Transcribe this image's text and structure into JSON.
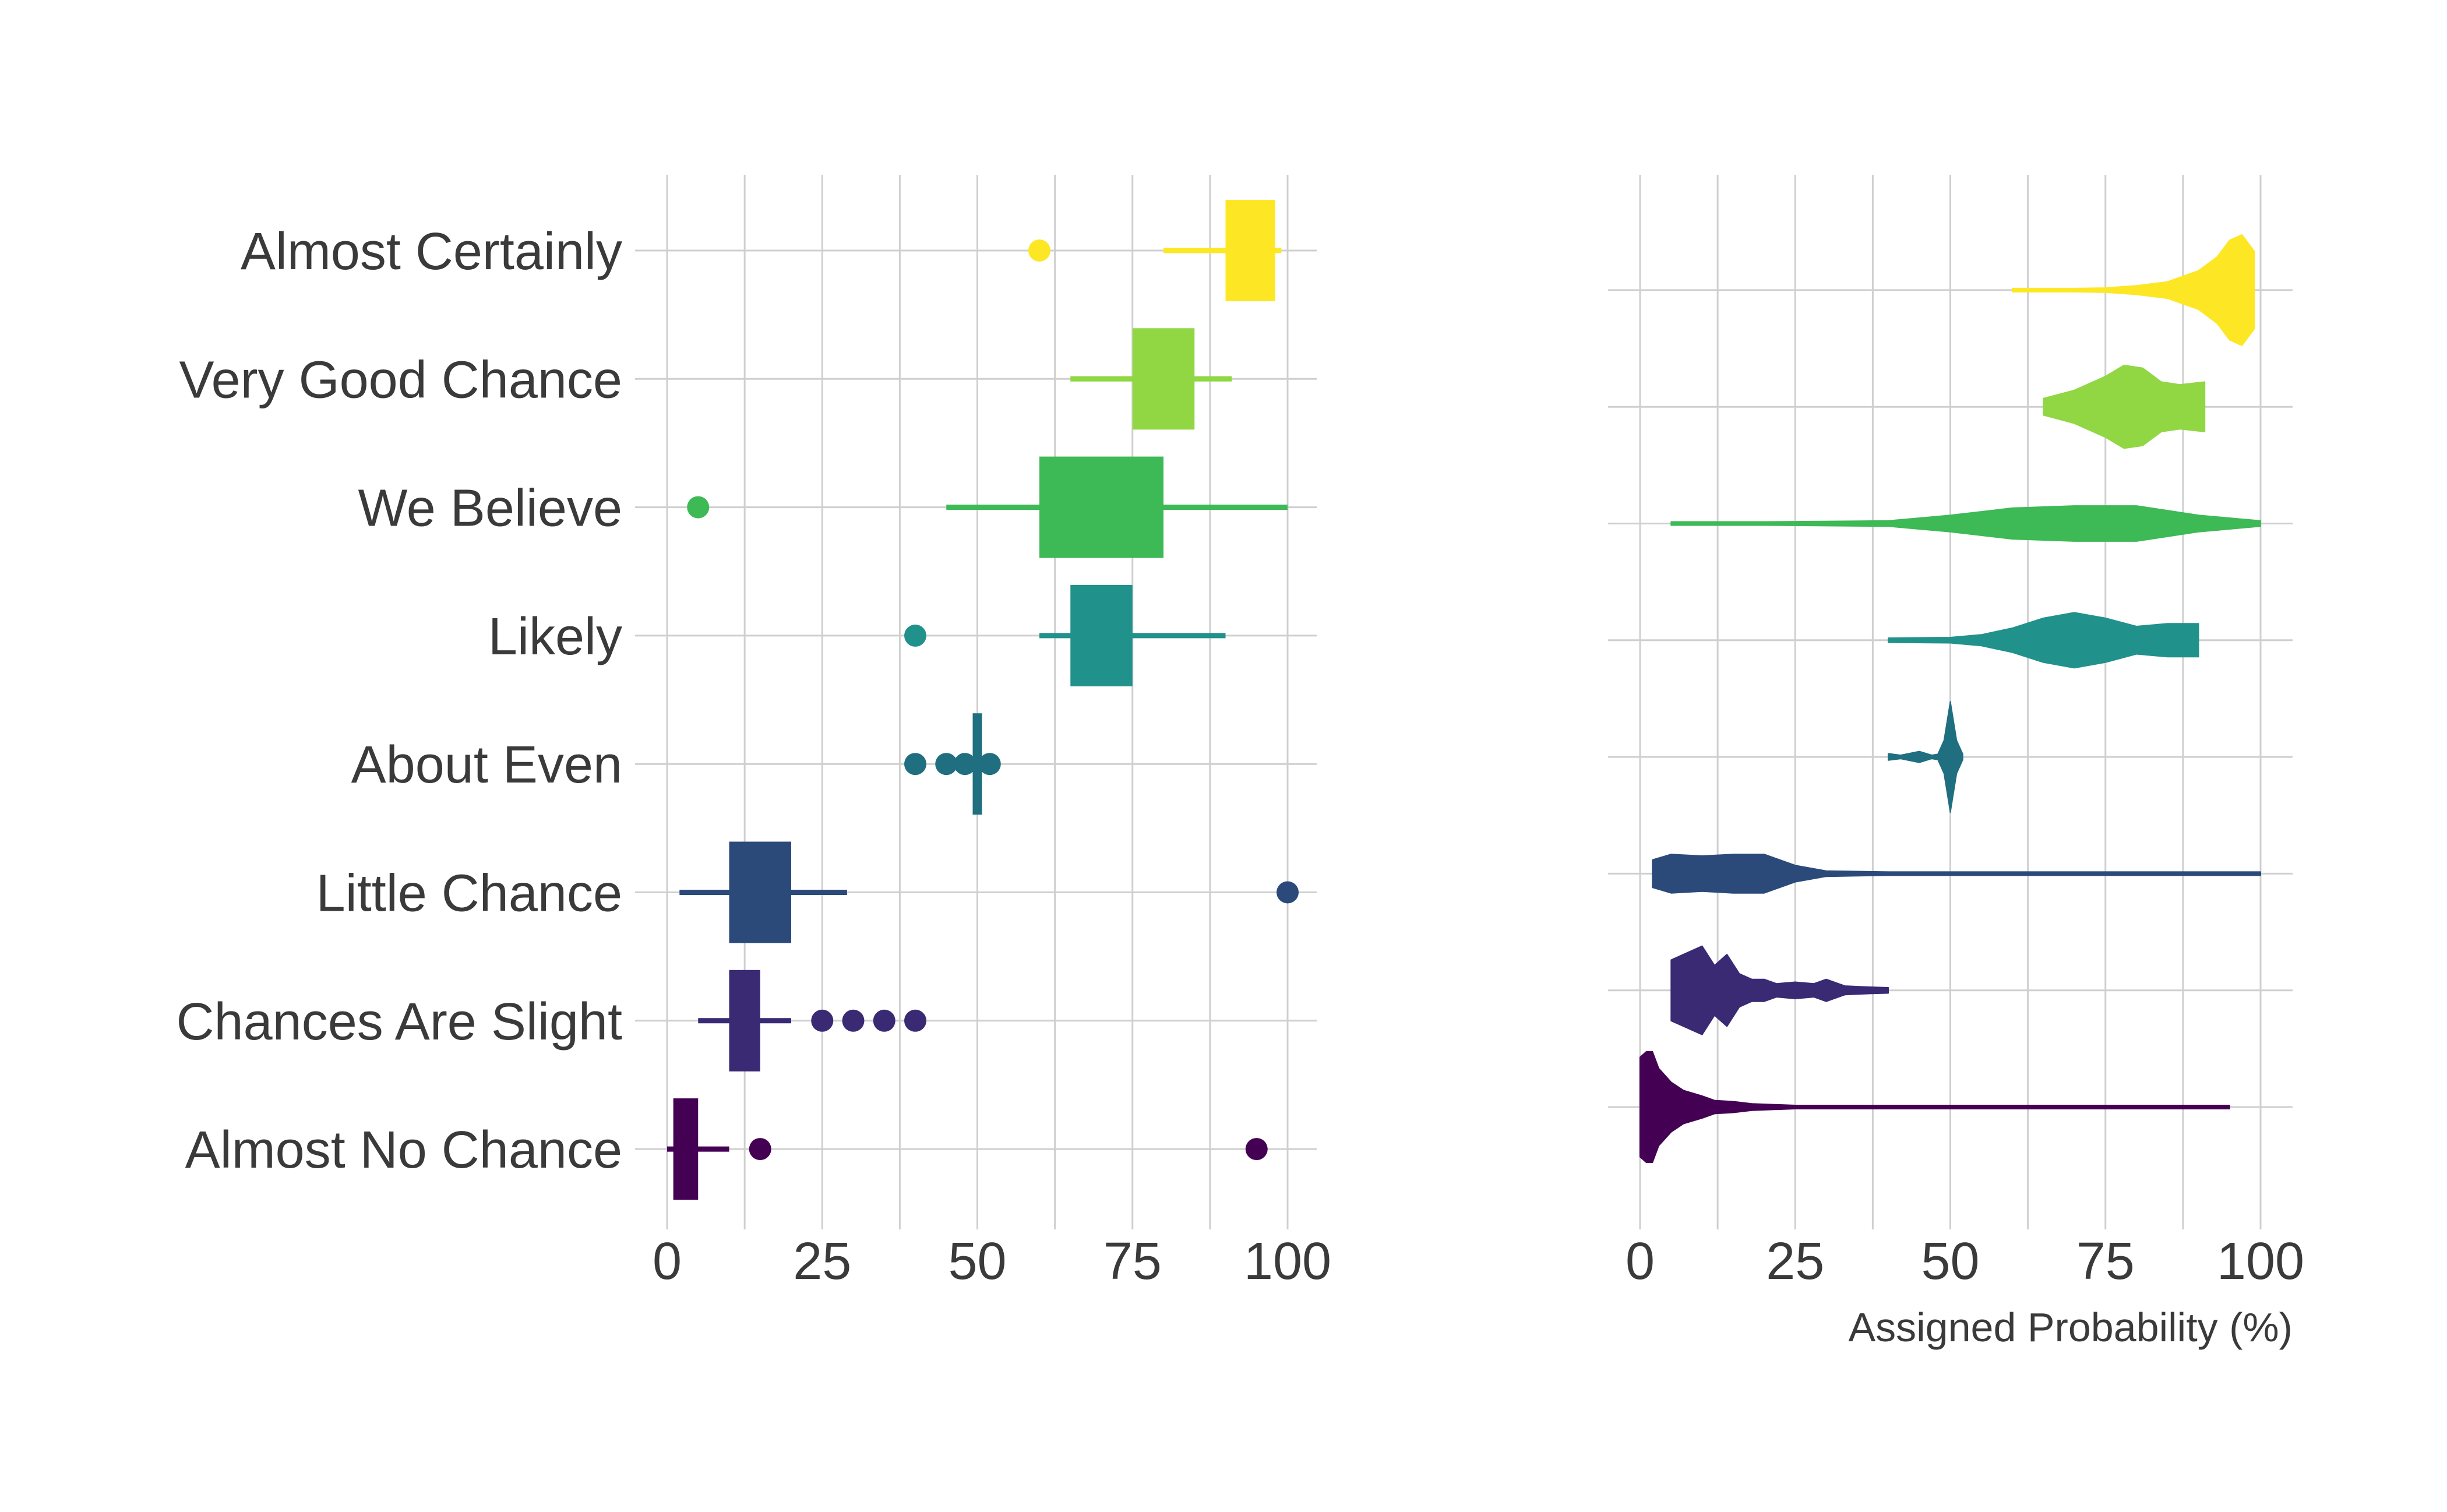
{
  "chart_data": [
    {
      "type": "box",
      "title": "",
      "xlabel": "",
      "ylabel": "",
      "xlim": [
        0,
        100
      ],
      "x_ticks": [
        0,
        25,
        50,
        75,
        100
      ],
      "grid": true,
      "legend": "none",
      "categories": [
        "Almost Certainly",
        "Very Good Chance",
        "We Believe",
        "Likely",
        "About Even",
        "Little Chance",
        "Chances Are Slight",
        "Almost No Chance"
      ],
      "series": [
        {
          "category": "Almost Certainly",
          "color": "#FDE725",
          "whisker_low": 80,
          "q1": 90,
          "median": 95,
          "q3": 98,
          "whisker_high": 99,
          "outliers": [
            60
          ]
        },
        {
          "category": "Very Good Chance",
          "color": "#90D743",
          "whisker_low": 65,
          "q1": 75,
          "median": 80,
          "q3": 85,
          "whisker_high": 91,
          "outliers": []
        },
        {
          "category": "We Believe",
          "color": "#3DB955",
          "whisker_low": 45,
          "q1": 60,
          "median": 75,
          "q3": 80,
          "whisker_high": 100,
          "outliers": [
            5
          ]
        },
        {
          "category": "Likely",
          "color": "#21918C",
          "whisker_low": 60,
          "q1": 65,
          "median": 70,
          "q3": 75,
          "whisker_high": 90,
          "outliers": [
            40
          ]
        },
        {
          "category": "About Even",
          "color": "#1F6F80",
          "whisker_low": 50,
          "q1": 50,
          "median": 50,
          "q3": 50,
          "whisker_high": 50,
          "outliers": [
            40,
            45,
            48,
            52
          ]
        },
        {
          "category": "Little Chance",
          "color": "#2B4A7A",
          "whisker_low": 2,
          "q1": 10,
          "median": 15,
          "q3": 20,
          "whisker_high": 29,
          "outliers": [
            100
          ]
        },
        {
          "category": "Chances Are Slight",
          "color": "#3A2A74",
          "whisker_low": 5,
          "q1": 10,
          "median": 12,
          "q3": 15,
          "whisker_high": 20,
          "outliers": [
            25,
            30,
            35,
            40
          ]
        },
        {
          "category": "Almost No Chance",
          "color": "#440154",
          "whisker_low": 0,
          "q1": 1,
          "median": 2,
          "q3": 5,
          "whisker_high": 10,
          "outliers": [
            15,
            95
          ]
        }
      ]
    },
    {
      "type": "violin",
      "title": "",
      "xlabel": "Assigned Probability (%)",
      "ylabel": "",
      "xlim": [
        0,
        100
      ],
      "x_ticks": [
        0,
        25,
        50,
        75,
        100
      ],
      "grid": true,
      "legend": "none",
      "series": [
        {
          "category": "Almost Certainly",
          "color": "#FDE725",
          "density": [
            [
              60,
              0.01
            ],
            [
              70,
              0.02
            ],
            [
              75,
              0.04
            ],
            [
              80,
              0.08
            ],
            [
              85,
              0.15
            ],
            [
              90,
              0.35
            ],
            [
              93,
              0.6
            ],
            [
              95,
              0.9
            ],
            [
              97,
              1.0
            ],
            [
              99,
              0.7
            ]
          ]
        },
        {
          "category": "Very Good Chance",
          "color": "#90D743",
          "density": [
            [
              65,
              0.15
            ],
            [
              70,
              0.3
            ],
            [
              75,
              0.55
            ],
            [
              78,
              0.75
            ],
            [
              81,
              0.7
            ],
            [
              84,
              0.45
            ],
            [
              87,
              0.4
            ],
            [
              91,
              0.45
            ]
          ]
        },
        {
          "category": "We Believe",
          "color": "#3DB955",
          "density": [
            [
              5,
              0.02
            ],
            [
              20,
              0.03
            ],
            [
              40,
              0.05
            ],
            [
              50,
              0.15
            ],
            [
              60,
              0.28
            ],
            [
              70,
              0.32
            ],
            [
              80,
              0.32
            ],
            [
              90,
              0.15
            ],
            [
              100,
              0.05
            ]
          ]
        },
        {
          "category": "Likely",
          "color": "#21918C",
          "density": [
            [
              40,
              0.04
            ],
            [
              50,
              0.05
            ],
            [
              55,
              0.1
            ],
            [
              60,
              0.22
            ],
            [
              65,
              0.4
            ],
            [
              70,
              0.5
            ],
            [
              75,
              0.4
            ],
            [
              80,
              0.25
            ],
            [
              85,
              0.3
            ],
            [
              90,
              0.3
            ]
          ]
        },
        {
          "category": "About Even",
          "color": "#1F6F80",
          "density": [
            [
              40,
              0.06
            ],
            [
              42,
              0.03
            ],
            [
              45,
              0.1
            ],
            [
              47,
              0.03
            ],
            [
              48,
              0.05
            ],
            [
              49,
              0.3
            ],
            [
              50,
              1.0
            ],
            [
              51,
              0.3
            ],
            [
              52,
              0.05
            ]
          ]
        },
        {
          "category": "Little Chance",
          "color": "#2B4A7A",
          "density": [
            [
              2,
              0.25
            ],
            [
              5,
              0.35
            ],
            [
              10,
              0.32
            ],
            [
              15,
              0.35
            ],
            [
              20,
              0.35
            ],
            [
              25,
              0.15
            ],
            [
              30,
              0.05
            ],
            [
              40,
              0.02
            ],
            [
              60,
              0.015
            ],
            [
              100,
              0.015
            ]
          ]
        },
        {
          "category": "Chances Are Slight",
          "color": "#3A2A74",
          "density": [
            [
              5,
              0.55
            ],
            [
              8,
              0.7
            ],
            [
              10,
              0.8
            ],
            [
              12,
              0.45
            ],
            [
              14,
              0.65
            ],
            [
              16,
              0.3
            ],
            [
              18,
              0.2
            ],
            [
              20,
              0.2
            ],
            [
              22,
              0.12
            ],
            [
              25,
              0.15
            ],
            [
              28,
              0.12
            ],
            [
              30,
              0.2
            ],
            [
              33,
              0.08
            ],
            [
              37,
              0.06
            ],
            [
              40,
              0.05
            ]
          ]
        },
        {
          "category": "Almost No Chance",
          "color": "#440154",
          "density": [
            [
              0,
              0.9
            ],
            [
              1,
              1.0
            ],
            [
              2,
              1.0
            ],
            [
              3,
              0.7
            ],
            [
              5,
              0.45
            ],
            [
              7,
              0.3
            ],
            [
              10,
              0.2
            ],
            [
              12,
              0.12
            ],
            [
              15,
              0.1
            ],
            [
              18,
              0.06
            ],
            [
              25,
              0.03
            ],
            [
              50,
              0.03
            ],
            [
              95,
              0.03
            ]
          ]
        }
      ]
    }
  ]
}
